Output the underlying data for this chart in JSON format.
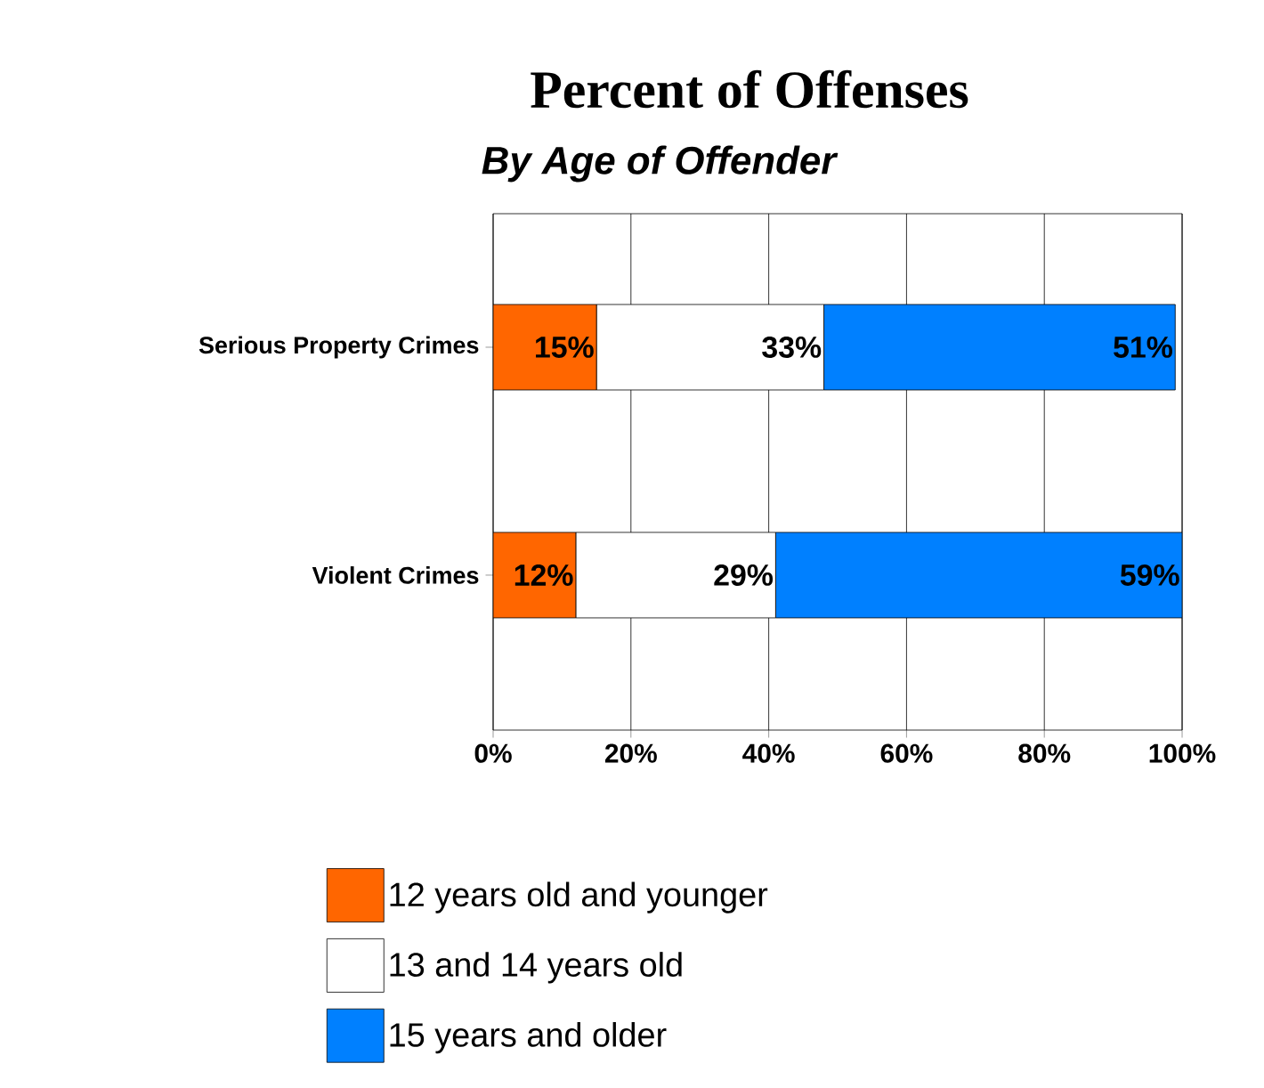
{
  "chart_data": {
    "type": "bar",
    "orientation": "horizontal",
    "stacked": true,
    "title": "Percent of Offenses",
    "subtitle": "By Age of Offender",
    "categories": [
      "Serious Property Crimes",
      "Violent Crimes"
    ],
    "series": [
      {
        "name": "12 years old and younger",
        "color": "#ff6600",
        "values": [
          15,
          12
        ],
        "value_labels": [
          "15%",
          "12%"
        ]
      },
      {
        "name": "13 and 14 years old",
        "color": "#ffffff",
        "values": [
          33,
          29
        ],
        "value_labels": [
          "33%",
          "29%"
        ]
      },
      {
        "name": "15 years and older",
        "color": "#0080ff",
        "values": [
          51,
          59
        ],
        "value_labels": [
          "51%",
          "59%"
        ]
      }
    ],
    "xlim": [
      0,
      100
    ],
    "xticks": [
      {
        "value": 0,
        "label": "0%"
      },
      {
        "value": 20,
        "label": "20%"
      },
      {
        "value": 40,
        "label": "40%"
      },
      {
        "value": 60,
        "label": "60%"
      },
      {
        "value": 80,
        "label": "80%"
      },
      {
        "value": 100,
        "label": "100%"
      }
    ],
    "grid": "x",
    "legend": "bottom"
  }
}
